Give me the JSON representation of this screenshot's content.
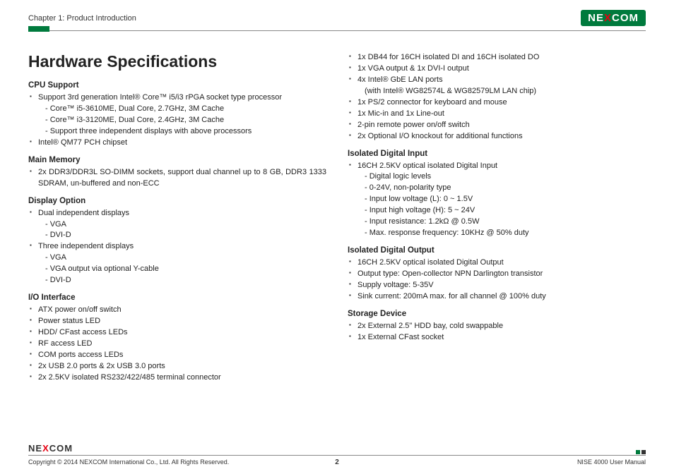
{
  "header": {
    "chapter": "Chapter 1: Product Introduction",
    "logo_left": "NE",
    "logo_x": "X",
    "logo_right": "COM"
  },
  "page": {
    "title": "Hardware Specifications",
    "col1": {
      "s1": {
        "heading": "CPU Support",
        "b1": "Support 3rd generation Intel® Core™ i5/i3 rPGA socket type processor",
        "b1a": "- Core™ i5-3610ME, Dual Core, 2.7GHz, 3M Cache",
        "b1b": "- Core™ i3-3120ME, Dual Core, 2.4GHz, 3M Cache",
        "b1c": "- Support three independent displays with above processors",
        "b2": "Intel® QM77 PCH chipset"
      },
      "s2": {
        "heading": "Main Memory",
        "b1": "2x DDR3/DDR3L SO-DIMM sockets, support dual channel up to 8 GB, DDR3 1333 SDRAM, un-buffered and non-ECC"
      },
      "s3": {
        "heading": "Display Option",
        "b1": "Dual independent displays",
        "b1a": "- VGA",
        "b1b": "- DVI-D",
        "b2": "Three independent displays",
        "b2a": "- VGA",
        "b2b": "- VGA output via optional Y-cable",
        "b2c": "- DVI-D"
      },
      "s4": {
        "heading": "I/O Interface",
        "b1": "ATX power on/off switch",
        "b2": "Power status LED",
        "b3": "HDD/ CFast access LEDs",
        "b4": "RF access LED",
        "b5": "COM ports access LEDs",
        "b6": "2x USB 2.0 ports & 2x USB 3.0 ports",
        "b7": "2x 2.5KV isolated RS232/422/485 terminal connector"
      }
    },
    "col2": {
      "s0": {
        "b1": "1x DB44 for 16CH isolated DI and 16CH isolated DO",
        "b2": "1x VGA output & 1x DVI-I output",
        "b3": "4x Intel® GbE LAN ports",
        "b3a": "(with Intel® WG82574L & WG82579LM LAN chip)",
        "b4": "1x PS/2 connector for keyboard and mouse",
        "b5": "1x Mic-in and 1x Line-out",
        "b6": "2-pin remote power on/off switch",
        "b7": "2x Optional I/O knockout for additional functions"
      },
      "s1": {
        "heading": "Isolated Digital Input",
        "b1": "16CH 2.5KV optical isolated Digital Input",
        "b1a": "- Digital logic levels",
        "b1b": "- 0-24V, non-polarity type",
        "b1c": "- Input low voltage (L): 0 ~ 1.5V",
        "b1d": "- Input high voltage (H): 5 ~ 24V",
        "b1e": "- Input resistance: 1.2kΩ @ 0.5W",
        "b1f": "- Max. response frequency: 10KHz @ 50% duty"
      },
      "s2": {
        "heading": "Isolated Digital Output",
        "b1": "16CH 2.5KV optical isolated Digital Output",
        "b2": "Output type: Open-collector NPN Darlington transistor",
        "b3": "Supply voltage: 5-35V",
        "b4": "Sink current: 200mA max. for all channel @ 100% duty"
      },
      "s3": {
        "heading": "Storage Device",
        "b1": "2x External 2.5\" HDD bay, cold swappable",
        "b2": "1x External CFast socket"
      }
    }
  },
  "footer": {
    "logo_left": "NE",
    "logo_x": "X",
    "logo_right": "COM",
    "copyright": "Copyright © 2014 NEXCOM International Co., Ltd. All Rights Reserved.",
    "page_num": "2",
    "manual": "NISE 4000 User Manual"
  }
}
